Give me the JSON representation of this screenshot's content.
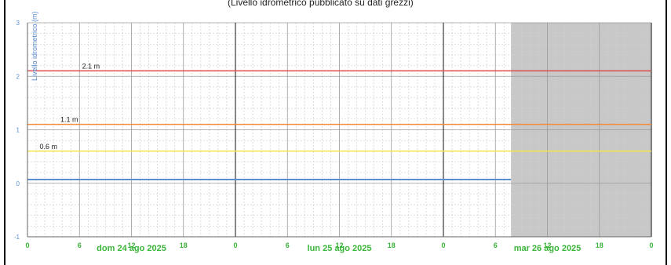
{
  "top_caption": "(Livello idrometrico pubblicato su dati grezzi)",
  "chart_data": {
    "type": "line",
    "ylabel": "Livello idrometrico (m)",
    "ylim": [
      -1,
      3
    ],
    "yticks": [
      -1,
      0,
      1,
      2,
      3
    ],
    "xlim": [
      0,
      72
    ],
    "xticks": [
      {
        "x": 0,
        "label": "0"
      },
      {
        "x": 6,
        "label": "6"
      },
      {
        "x": 12,
        "label": "12"
      },
      {
        "x": 18,
        "label": "18"
      },
      {
        "x": 24,
        "label": "0"
      },
      {
        "x": 30,
        "label": "6"
      },
      {
        "x": 36,
        "label": "12"
      },
      {
        "x": 42,
        "label": "18"
      },
      {
        "x": 48,
        "label": "0"
      },
      {
        "x": 54,
        "label": "6"
      },
      {
        "x": 60,
        "label": "12"
      },
      {
        "x": 66,
        "label": "18"
      },
      {
        "x": 72,
        "label": "0"
      }
    ],
    "day_labels": [
      {
        "x": 12,
        "label": "dom 24 ago 2025"
      },
      {
        "x": 36,
        "label": "lun 25 ago 2025"
      },
      {
        "x": 60,
        "label": "mar 26 ago 2025"
      }
    ],
    "future_region": {
      "from": 55.8,
      "to": 72,
      "color": "#c8c8c8"
    },
    "thresholds": [
      {
        "value": 2.1,
        "label": "2.1 m",
        "color": "#e0494b",
        "label_x": 6.3
      },
      {
        "value": 1.1,
        "label": "1.1 m",
        "color": "#f28b3c",
        "label_x": 3.8
      },
      {
        "value": 0.6,
        "label": "0.6 m",
        "color": "#f2e44a",
        "label_x": 1.4
      }
    ],
    "series": [
      {
        "x": [
          0,
          55.8
        ],
        "y": [
          0.07,
          0.07
        ],
        "color": "#5b8ed0"
      }
    ],
    "grid": true,
    "colors": {
      "axis_label": "#5b8ed0",
      "xtick_label": "#3ab53a",
      "major_grid": "#9a9a9a",
      "day_grid": "#111111",
      "minor_grid": "#d0d0d0"
    }
  }
}
